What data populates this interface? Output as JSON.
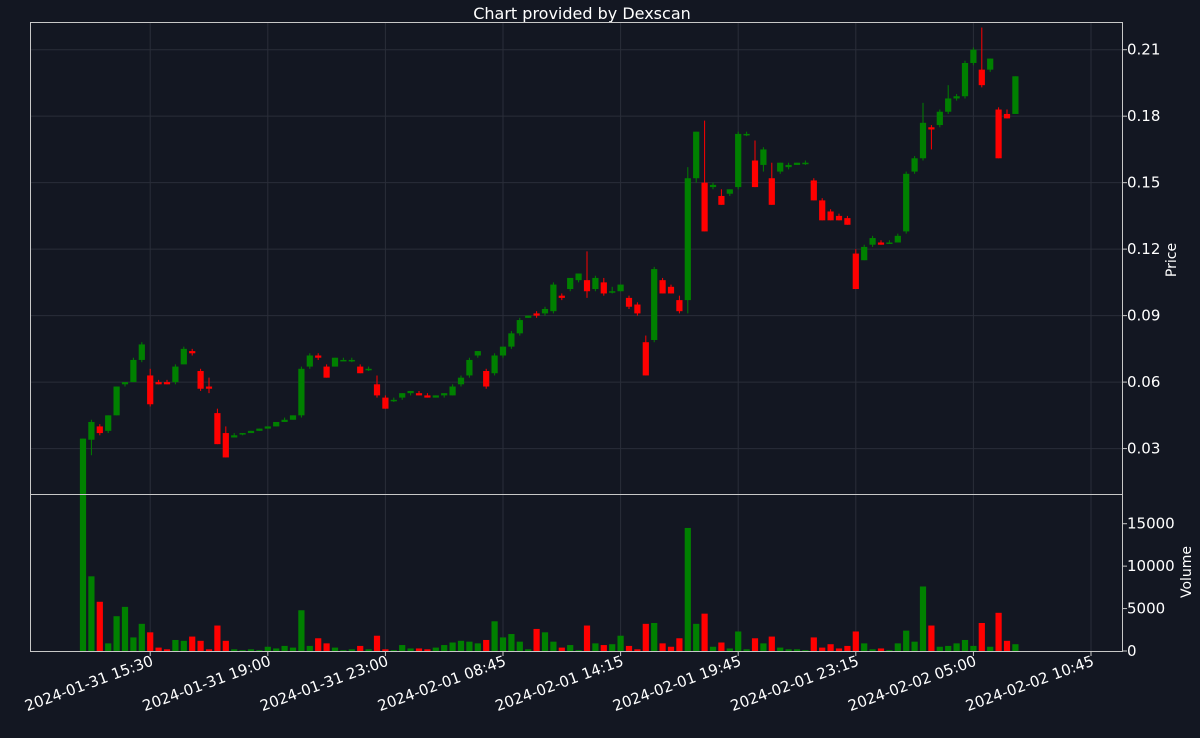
{
  "chart_data": {
    "type": "candlestick",
    "title": "Chart provided by Dexscan",
    "price_axis": {
      "label": "Price",
      "ticks": [
        0.03,
        0.06,
        0.09,
        0.12,
        0.15,
        0.18,
        0.21
      ],
      "range": [
        0.0095,
        0.2225
      ]
    },
    "volume_axis": {
      "label": "Volume",
      "ticks": [
        0,
        5000,
        10000,
        15000
      ],
      "range": [
        0,
        18500
      ]
    },
    "x_tick_labels": [
      "2024-01-31 15:30",
      "2024-01-31 19:00",
      "2024-01-31 23:00",
      "2024-02-01 08:45",
      "2024-02-01 14:15",
      "2024-02-01 19:45",
      "2024-02-01 23:15",
      "2024-02-02 05:00",
      "2024-02-02 10:45"
    ],
    "x_tick_positions": [
      8,
      22,
      36,
      50,
      64,
      78,
      92,
      106,
      120
    ],
    "grid": true,
    "up_color": "#008000",
    "down_color": "#ff0000",
    "candles": [
      [
        0,
        0.0095,
        0.0345,
        0.0095,
        0.0345,
        18400
      ],
      [
        1,
        0.034,
        0.043,
        0.027,
        0.042,
        8800
      ],
      [
        2,
        0.04,
        0.041,
        0.036,
        0.037,
        5800
      ],
      [
        3,
        0.038,
        0.045,
        0.037,
        0.045,
        900
      ],
      [
        4,
        0.045,
        0.058,
        0.045,
        0.058,
        4100
      ],
      [
        5,
        0.059,
        0.06,
        0.058,
        0.06,
        5200
      ],
      [
        6,
        0.06,
        0.071,
        0.06,
        0.07,
        1600
      ],
      [
        7,
        0.07,
        0.078,
        0.069,
        0.077,
        3200
      ],
      [
        8,
        0.063,
        0.066,
        0.049,
        0.05,
        2200
      ],
      [
        9,
        0.06,
        0.061,
        0.059,
        0.059,
        400
      ],
      [
        10,
        0.06,
        0.061,
        0.059,
        0.059,
        200
      ],
      [
        11,
        0.06,
        0.068,
        0.059,
        0.067,
        1300
      ],
      [
        12,
        0.068,
        0.076,
        0.068,
        0.075,
        1200
      ],
      [
        13,
        0.074,
        0.075,
        0.072,
        0.073,
        1700
      ],
      [
        14,
        0.065,
        0.066,
        0.056,
        0.057,
        1200
      ],
      [
        15,
        0.058,
        0.062,
        0.055,
        0.057,
        200
      ],
      [
        16,
        0.046,
        0.048,
        0.032,
        0.032,
        3000
      ],
      [
        17,
        0.037,
        0.04,
        0.026,
        0.026,
        1200
      ],
      [
        18,
        0.035,
        0.037,
        0.035,
        0.036,
        200
      ],
      [
        19,
        0.0365,
        0.037,
        0.036,
        0.037,
        100
      ],
      [
        20,
        0.037,
        0.038,
        0.037,
        0.038,
        200
      ],
      [
        21,
        0.038,
        0.039,
        0.038,
        0.039,
        100
      ],
      [
        22,
        0.039,
        0.04,
        0.039,
        0.04,
        500
      ],
      [
        23,
        0.04,
        0.042,
        0.04,
        0.042,
        300
      ],
      [
        24,
        0.042,
        0.044,
        0.042,
        0.043,
        600
      ],
      [
        25,
        0.043,
        0.045,
        0.043,
        0.045,
        400
      ],
      [
        26,
        0.045,
        0.067,
        0.044,
        0.066,
        4800
      ],
      [
        27,
        0.067,
        0.073,
        0.066,
        0.072,
        600
      ],
      [
        28,
        0.072,
        0.073,
        0.07,
        0.071,
        1500
      ],
      [
        29,
        0.067,
        0.068,
        0.062,
        0.062,
        900
      ],
      [
        30,
        0.067,
        0.071,
        0.067,
        0.071,
        400
      ],
      [
        31,
        0.07,
        0.071,
        0.07,
        0.07,
        100
      ],
      [
        32,
        0.07,
        0.071,
        0.069,
        0.07,
        200
      ],
      [
        33,
        0.067,
        0.068,
        0.064,
        0.064,
        600
      ],
      [
        34,
        0.066,
        0.067,
        0.065,
        0.066,
        200
      ],
      [
        35,
        0.059,
        0.063,
        0.053,
        0.054,
        1800
      ],
      [
        36,
        0.053,
        0.054,
        0.048,
        0.048,
        200
      ],
      [
        37,
        0.052,
        0.053,
        0.051,
        0.052,
        100
      ],
      [
        38,
        0.053,
        0.055,
        0.052,
        0.055,
        700
      ],
      [
        39,
        0.055,
        0.056,
        0.054,
        0.056,
        300
      ],
      [
        40,
        0.055,
        0.056,
        0.054,
        0.054,
        300
      ],
      [
        41,
        0.054,
        0.055,
        0.053,
        0.053,
        200
      ],
      [
        42,
        0.053,
        0.054,
        0.053,
        0.054,
        400
      ],
      [
        43,
        0.054,
        0.055,
        0.053,
        0.055,
        700
      ],
      [
        44,
        0.054,
        0.059,
        0.054,
        0.058,
        1000
      ],
      [
        45,
        0.059,
        0.063,
        0.058,
        0.062,
        1200
      ],
      [
        46,
        0.063,
        0.071,
        0.062,
        0.07,
        1100
      ],
      [
        47,
        0.072,
        0.074,
        0.071,
        0.074,
        900
      ],
      [
        48,
        0.065,
        0.066,
        0.057,
        0.058,
        1300
      ],
      [
        49,
        0.064,
        0.073,
        0.063,
        0.072,
        3500
      ],
      [
        50,
        0.072,
        0.076,
        0.071,
        0.076,
        1600
      ],
      [
        51,
        0.076,
        0.083,
        0.075,
        0.082,
        2000
      ],
      [
        52,
        0.082,
        0.089,
        0.081,
        0.088,
        1100
      ],
      [
        53,
        0.089,
        0.09,
        0.089,
        0.09,
        200
      ],
      [
        54,
        0.091,
        0.092,
        0.089,
        0.09,
        2600
      ],
      [
        55,
        0.091,
        0.094,
        0.09,
        0.093,
        2200
      ],
      [
        56,
        0.092,
        0.105,
        0.091,
        0.104,
        1100
      ],
      [
        57,
        0.099,
        0.1,
        0.097,
        0.098,
        400
      ],
      [
        58,
        0.102,
        0.107,
        0.101,
        0.107,
        700
      ],
      [
        59,
        0.106,
        0.109,
        0.105,
        0.109,
        100
      ],
      [
        60,
        0.106,
        0.119,
        0.098,
        0.101,
        3000
      ],
      [
        61,
        0.102,
        0.108,
        0.101,
        0.107,
        900
      ],
      [
        62,
        0.105,
        0.107,
        0.099,
        0.1,
        700
      ],
      [
        63,
        0.101,
        0.103,
        0.1,
        0.101,
        800
      ],
      [
        64,
        0.101,
        0.104,
        0.101,
        0.104,
        1800
      ],
      [
        65,
        0.098,
        0.099,
        0.093,
        0.094,
        600
      ],
      [
        66,
        0.095,
        0.096,
        0.09,
        0.091,
        200
      ],
      [
        67,
        0.078,
        0.081,
        0.063,
        0.063,
        3200
      ],
      [
        68,
        0.079,
        0.112,
        0.078,
        0.111,
        3300
      ],
      [
        69,
        0.106,
        0.107,
        0.1,
        0.1,
        900
      ],
      [
        70,
        0.103,
        0.104,
        0.1,
        0.1,
        500
      ],
      [
        71,
        0.097,
        0.099,
        0.091,
        0.092,
        1500
      ],
      [
        72,
        0.097,
        0.157,
        0.091,
        0.152,
        14500
      ],
      [
        73,
        0.152,
        0.173,
        0.15,
        0.173,
        3200
      ],
      [
        74,
        0.15,
        0.178,
        0.128,
        0.128,
        4400
      ],
      [
        75,
        0.148,
        0.15,
        0.147,
        0.149,
        500
      ],
      [
        76,
        0.144,
        0.147,
        0.14,
        0.14,
        1000
      ],
      [
        77,
        0.145,
        0.147,
        0.144,
        0.147,
        300
      ],
      [
        78,
        0.148,
        0.173,
        0.147,
        0.172,
        2300
      ],
      [
        79,
        0.172,
        0.173,
        0.171,
        0.172,
        200
      ],
      [
        80,
        0.16,
        0.169,
        0.148,
        0.148,
        1500
      ],
      [
        81,
        0.158,
        0.166,
        0.155,
        0.165,
        900
      ],
      [
        82,
        0.152,
        0.159,
        0.14,
        0.14,
        1700
      ],
      [
        83,
        0.155,
        0.159,
        0.154,
        0.159,
        400
      ],
      [
        84,
        0.157,
        0.159,
        0.156,
        0.158,
        200
      ],
      [
        85,
        0.158,
        0.159,
        0.158,
        0.159,
        200
      ],
      [
        86,
        0.159,
        0.16,
        0.158,
        0.159,
        100
      ],
      [
        87,
        0.151,
        0.152,
        0.142,
        0.142,
        1600
      ],
      [
        88,
        0.142,
        0.143,
        0.133,
        0.133,
        400
      ],
      [
        89,
        0.137,
        0.138,
        0.133,
        0.133,
        800
      ],
      [
        90,
        0.135,
        0.136,
        0.133,
        0.133,
        300
      ],
      [
        91,
        0.134,
        0.135,
        0.131,
        0.131,
        600
      ],
      [
        92,
        0.118,
        0.12,
        0.102,
        0.102,
        2300
      ],
      [
        93,
        0.115,
        0.122,
        0.115,
        0.121,
        900
      ],
      [
        94,
        0.122,
        0.126,
        0.121,
        0.125,
        200
      ],
      [
        95,
        0.123,
        0.124,
        0.122,
        0.122,
        300
      ],
      [
        96,
        0.123,
        0.124,
        0.123,
        0.123,
        100
      ],
      [
        97,
        0.123,
        0.127,
        0.123,
        0.126,
        900
      ],
      [
        98,
        0.128,
        0.155,
        0.127,
        0.154,
        2400
      ],
      [
        99,
        0.155,
        0.162,
        0.154,
        0.161,
        1100
      ],
      [
        100,
        0.161,
        0.186,
        0.16,
        0.177,
        7600
      ],
      [
        101,
        0.175,
        0.176,
        0.165,
        0.174,
        3000
      ],
      [
        102,
        0.176,
        0.183,
        0.175,
        0.182,
        500
      ],
      [
        103,
        0.182,
        0.194,
        0.181,
        0.188,
        600
      ],
      [
        104,
        0.188,
        0.19,
        0.187,
        0.189,
        900
      ],
      [
        105,
        0.189,
        0.205,
        0.188,
        0.204,
        1300
      ],
      [
        106,
        0.204,
        0.211,
        0.203,
        0.21,
        600
      ],
      [
        107,
        0.201,
        0.22,
        0.193,
        0.194,
        3300
      ],
      [
        108,
        0.201,
        0.206,
        0.2,
        0.206,
        500
      ],
      [
        109,
        0.183,
        0.184,
        0.161,
        0.161,
        4500
      ],
      [
        110,
        0.181,
        0.183,
        0.179,
        0.179,
        1200
      ],
      [
        111,
        0.181,
        0.198,
        0.181,
        0.198,
        800
      ]
    ]
  }
}
